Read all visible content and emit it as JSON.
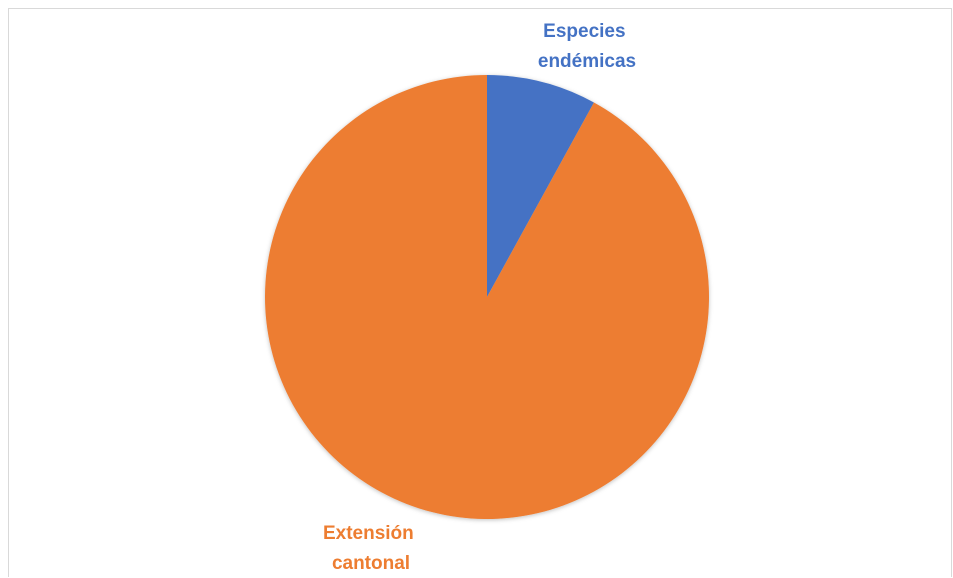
{
  "chart_data": {
    "type": "pie",
    "title": "",
    "slices": [
      {
        "label_lines": [
          "Especies",
          "endémicas"
        ],
        "value": 8,
        "color": "#4472C4"
      },
      {
        "label_lines": [
          "Extensión",
          "cantonal"
        ],
        "value": 92,
        "color": "#ED7D31"
      }
    ],
    "start_angle_deg": 0,
    "direction": "clockwise",
    "legend": "none",
    "data_labels": "category-name"
  }
}
